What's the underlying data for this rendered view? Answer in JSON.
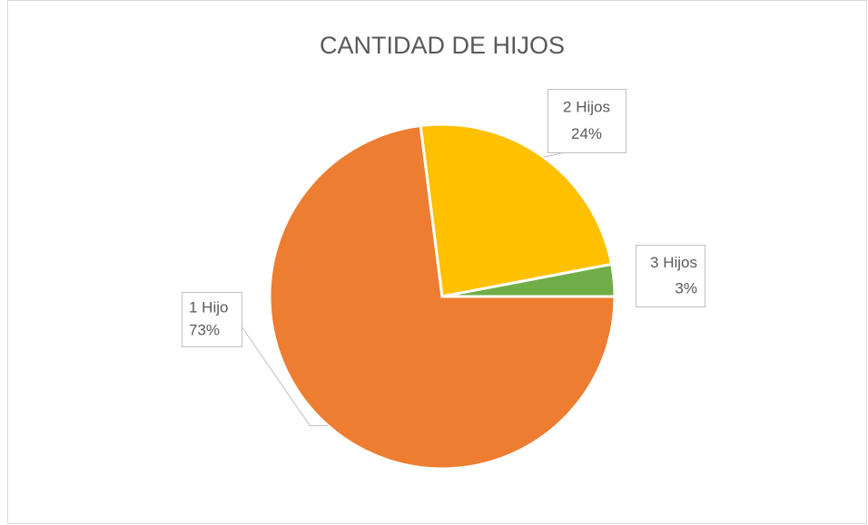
{
  "chart_data": {
    "type": "pie",
    "title": "CANTIDAD DE HIJOS",
    "categories": [
      "1 Hijo",
      "2 Hijos",
      "3 Hijos"
    ],
    "values": [
      73,
      24,
      3
    ],
    "value_labels": [
      "73%",
      "24%",
      "3%"
    ],
    "colors": [
      "#ed7d31",
      "#ffc000",
      "#70ad47"
    ]
  }
}
